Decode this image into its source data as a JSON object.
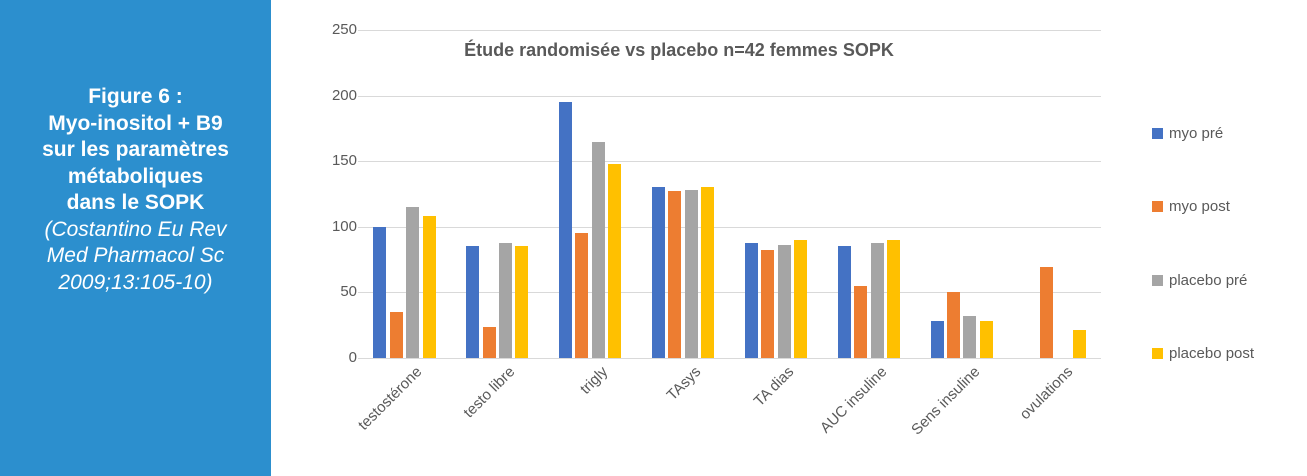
{
  "sidebar": {
    "caption": "Figure 6 :\nMyo-inositol + B9\nsur les paramètres\nmétaboliques\ndans le SOPK",
    "citation": "(Costantino Eu Rev\nMed Pharmacol Sc\n2009;13:105-10)",
    "background_color": "#2C8FCE",
    "text_color": "#ffffff"
  },
  "chart_data": {
    "type": "bar",
    "title": "Étude randomisée vs placebo n=42 femmes SOPK",
    "categories": [
      "testostérone",
      "testo libre",
      "trigly",
      "TAsys",
      "TA dias",
      "AUC insuline",
      "Sens insuline",
      "ovulations"
    ],
    "series": [
      {
        "name": "myo pré",
        "color": "#4472C4",
        "values": [
          100,
          85,
          195,
          130,
          88,
          85,
          28,
          0
        ]
      },
      {
        "name": "myo post",
        "color": "#ED7D31",
        "values": [
          35,
          24,
          95,
          127,
          82,
          55,
          50,
          69
        ]
      },
      {
        "name": "placebo pré",
        "color": "#A5A5A5",
        "values": [
          115,
          88,
          165,
          128,
          86,
          88,
          32,
          0
        ]
      },
      {
        "name": "placebo post",
        "color": "#FFC000",
        "values": [
          108,
          85,
          148,
          130,
          90,
          90,
          28,
          21
        ]
      }
    ],
    "ylim": [
      0,
      250
    ],
    "yticks": [
      0,
      50,
      100,
      150,
      200,
      250
    ],
    "xlabel": "",
    "ylabel": "",
    "grid": true,
    "legend_position": "right",
    "text_color": "#595959",
    "gridline_color": "#d9d9d9"
  }
}
